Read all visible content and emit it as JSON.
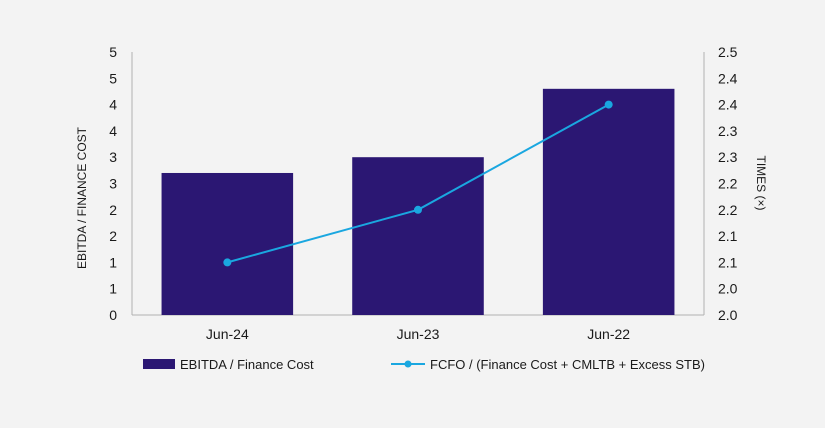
{
  "chart_data": {
    "type": "bar",
    "categories": [
      "Jun-24",
      "Jun-23",
      "Jun-22"
    ],
    "series": [
      {
        "name": "EBITDA / Finance Cost",
        "type": "bar",
        "axis": "left",
        "values": [
          2.7,
          3.0,
          4.3
        ]
      },
      {
        "name": "FCFO / (Finance Cost + CMLTB + Excess STB)",
        "type": "line",
        "axis": "right",
        "values": [
          2.1,
          2.2,
          2.4
        ]
      }
    ],
    "ylabel": "EBITDA / FINANCE COST",
    "y2label": "TIMES (×)",
    "ylim": [
      0,
      5
    ],
    "y2lim": [
      2.0,
      2.5
    ],
    "yticks": [
      0,
      0.5,
      1,
      1.5,
      2,
      2.5,
      3,
      3.5,
      4,
      4.5,
      5
    ],
    "ytick_labels": [
      "0",
      "1",
      "1",
      "2",
      "2",
      "3",
      "3",
      "4",
      "4",
      "5",
      "5"
    ],
    "y2ticks": [
      2.0,
      2.05,
      2.1,
      2.15,
      2.2,
      2.25,
      2.3,
      2.35,
      2.4,
      2.45,
      2.5
    ],
    "y2tick_labels": [
      "2.0",
      "2.0",
      "2.1",
      "2.1",
      "2.2",
      "2.2",
      "2.3",
      "2.3",
      "2.4",
      "2.4",
      "2.5"
    ],
    "grid": false,
    "legend_position": "bottom",
    "colors": {
      "bar": "#2b1773",
      "line": "#1aa7e0",
      "axis": "#b0b0b0",
      "background": "#f3f3f3"
    }
  }
}
